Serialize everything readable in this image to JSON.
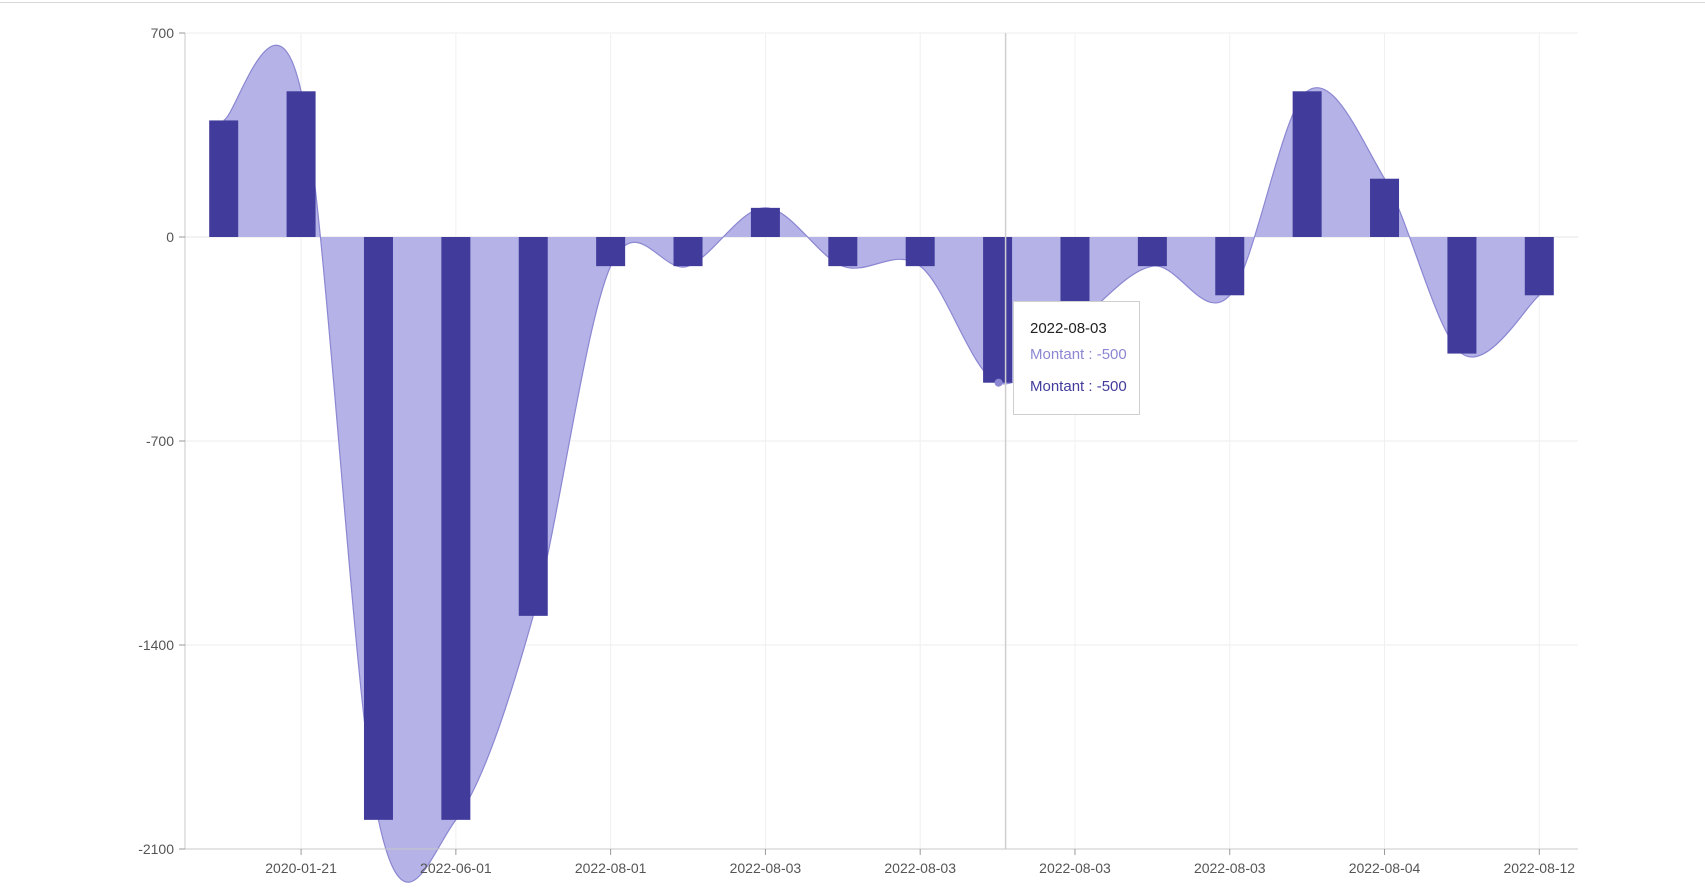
{
  "chart_data": {
    "type": "bar",
    "x_tick_labels": [
      "2020-01-21",
      "2022-06-01",
      "2022-08-01",
      "2022-08-03",
      "2022-08-03",
      "2022-08-03",
      "2022-08-03",
      "2022-08-04",
      "2022-08-12"
    ],
    "y_ticks": [
      700,
      0,
      -700,
      -1400,
      -2100
    ],
    "ylim": [
      -2100,
      700
    ],
    "grid": true,
    "series": [
      {
        "kind": "area-spline",
        "color": "#b4b2e6",
        "stroke": "#8b87d2",
        "values": [
          400,
          500,
          -2000,
          -2000,
          -1300,
          -100,
          -100,
          100,
          -100,
          -100,
          -500,
          -300,
          -100,
          -200,
          500,
          200,
          -400,
          -200
        ]
      },
      {
        "kind": "column",
        "color": "#413c9c",
        "values": [
          400,
          500,
          -2000,
          -2000,
          -1300,
          -100,
          -100,
          100,
          -100,
          -100,
          -500,
          -300,
          -100,
          -200,
          500,
          200,
          -400,
          -200
        ]
      }
    ],
    "crosshair_index": 10
  },
  "tooltip": {
    "title": "2022-08-03",
    "line1": "Montant : -500",
    "line2": "Montant : -500",
    "line1_color": "#8b87d2",
    "line2_color": "#413c9c"
  }
}
